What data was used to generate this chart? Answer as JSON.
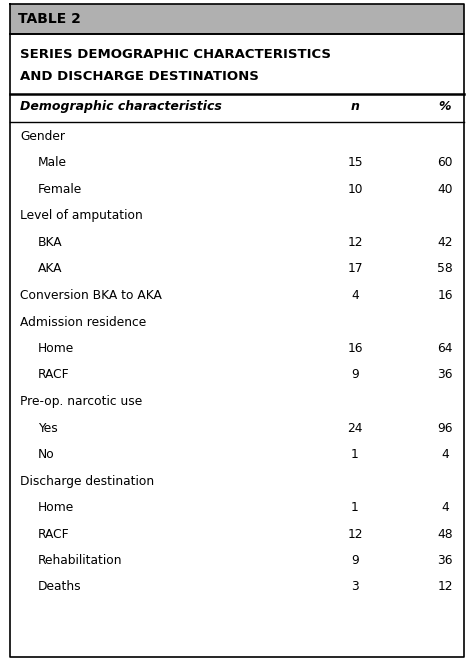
{
  "table_label": "TABLE 2",
  "title_line1": "SERIES DEMOGRAPHIC CHARACTERISTICS",
  "title_line2": "AND DISCHARGE DESTINATIONS",
  "col_headers": [
    "Demographic characteristics",
    "n",
    "%"
  ],
  "rows": [
    {
      "label": "Gender",
      "indent": 0,
      "n": "",
      "pct": ""
    },
    {
      "label": "Male",
      "indent": 1,
      "n": "15",
      "pct": "60"
    },
    {
      "label": "Female",
      "indent": 1,
      "n": "10",
      "pct": "40"
    },
    {
      "label": "Level of amputation",
      "indent": 0,
      "n": "",
      "pct": ""
    },
    {
      "label": "BKA",
      "indent": 1,
      "n": "12",
      "pct": "42"
    },
    {
      "label": "AKA",
      "indent": 1,
      "n": "17",
      "pct": "58"
    },
    {
      "label": "Conversion BKA to AKA",
      "indent": 0,
      "n": "4",
      "pct": "16"
    },
    {
      "label": "Admission residence",
      "indent": 0,
      "n": "",
      "pct": ""
    },
    {
      "label": "Home",
      "indent": 1,
      "n": "16",
      "pct": "64"
    },
    {
      "label": "RACF",
      "indent": 1,
      "n": "9",
      "pct": "36"
    },
    {
      "label": "Pre-op. narcotic use",
      "indent": 0,
      "n": "",
      "pct": ""
    },
    {
      "label": "Yes",
      "indent": 1,
      "n": "24",
      "pct": "96"
    },
    {
      "label": "No",
      "indent": 1,
      "n": "1",
      "pct": "4"
    },
    {
      "label": "Discharge destination",
      "indent": 0,
      "n": "",
      "pct": ""
    },
    {
      "label": "Home",
      "indent": 1,
      "n": "1",
      "pct": "4"
    },
    {
      "label": "RACF",
      "indent": 1,
      "n": "12",
      "pct": "48"
    },
    {
      "label": "Rehabilitation",
      "indent": 1,
      "n": "9",
      "pct": "36"
    },
    {
      "label": "Deaths",
      "indent": 1,
      "n": "3",
      "pct": "12"
    }
  ],
  "header_bg": "#b0b0b0",
  "table_bg": "#ffffff",
  "border_color": "#000000",
  "text_color": "#000000",
  "fig_width": 4.74,
  "fig_height": 6.61,
  "dpi": 100
}
